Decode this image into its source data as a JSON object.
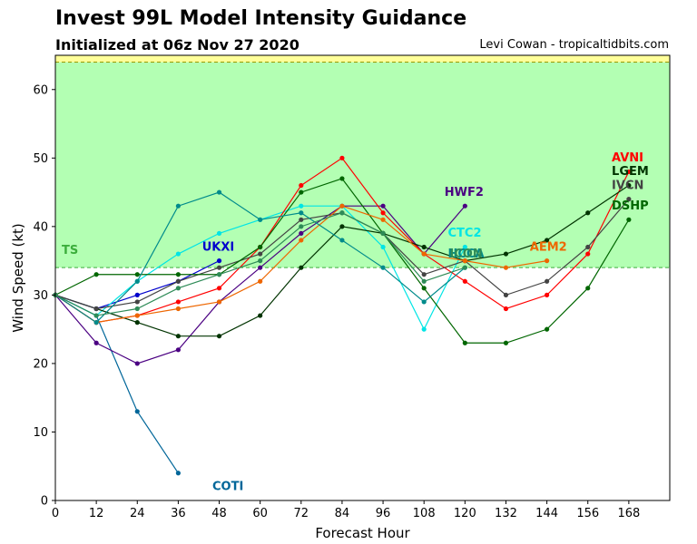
{
  "header": {
    "title": "Invest 99L Model Intensity Guidance",
    "subtitle": "Initialized at 06z Nov 27 2020",
    "credit": "Levi Cowan - tropicaltidbits.com"
  },
  "chart_data": {
    "type": "line",
    "xlabel": "Forecast Hour",
    "ylabel": "Wind Speed (kt)",
    "xlim": [
      0,
      180
    ],
    "ylim": [
      0,
      65
    ],
    "xticks": [
      0,
      12,
      24,
      36,
      48,
      60,
      72,
      84,
      96,
      108,
      120,
      132,
      144,
      156,
      168
    ],
    "yticks": [
      0,
      10,
      20,
      30,
      40,
      50,
      60
    ],
    "bands": [
      {
        "label": "TS",
        "from": 34,
        "to": 64,
        "color": "#b3ffb3",
        "label_color": "#3cae3c"
      },
      {
        "label": "",
        "from": 64,
        "to": 65,
        "color": "#ffff99",
        "label_color": "#999900"
      }
    ],
    "series": [
      {
        "name": "COTI",
        "color": "#006699",
        "label_x": 46,
        "label_y": 1.5,
        "x": [
          0,
          12,
          24,
          36
        ],
        "y": [
          30,
          27,
          13,
          4
        ]
      },
      {
        "name": "UKXI",
        "color": "#0000cc",
        "label_x": 43,
        "label_y": 36.5,
        "x": [
          0,
          12,
          24,
          36,
          48
        ],
        "y": [
          30,
          28,
          30,
          32,
          35
        ]
      },
      {
        "name": "HWF2",
        "color": "#4b0082",
        "label_x": 114,
        "label_y": 44.5,
        "x": [
          0,
          12,
          24,
          36,
          48,
          60,
          72,
          84,
          96,
          108,
          120
        ],
        "y": [
          30,
          23,
          20,
          22,
          29,
          34,
          39,
          43,
          43,
          36,
          43
        ]
      },
      {
        "name": "CTC2",
        "color": "#00e5e5",
        "label_x": 115,
        "label_y": 38.5,
        "x": [
          0,
          12,
          24,
          36,
          48,
          60,
          72,
          84,
          96,
          108,
          120
        ],
        "y": [
          30,
          27,
          32,
          36,
          39,
          41,
          43,
          43,
          37,
          25,
          37
        ]
      },
      {
        "name": "AVNI",
        "color": "#ff0000",
        "label_x": 163,
        "label_y": 49.5,
        "x": [
          0,
          12,
          24,
          36,
          48,
          60,
          72,
          84,
          96,
          108,
          120,
          132,
          144,
          156,
          168
        ],
        "y": [
          30,
          26,
          27,
          29,
          31,
          37,
          46,
          50,
          42,
          36,
          32,
          28,
          30,
          36,
          48
        ]
      },
      {
        "name": "LGEM",
        "color": "#003300",
        "label_x": 163,
        "label_y": 47.5,
        "x": [
          0,
          12,
          24,
          36,
          48,
          60,
          72,
          84,
          96,
          108,
          120,
          132,
          144,
          156,
          168
        ],
        "y": [
          30,
          28,
          26,
          24,
          24,
          27,
          34,
          40,
          39,
          37,
          35,
          36,
          38,
          42,
          46
        ]
      },
      {
        "name": "IVCN",
        "color": "#444444",
        "label_x": 163,
        "label_y": 45.5,
        "x": [
          0,
          12,
          24,
          36,
          48,
          60,
          72,
          84,
          96,
          108,
          120,
          132,
          144,
          156,
          168
        ],
        "y": [
          30,
          28,
          29,
          32,
          34,
          36,
          41,
          42,
          39,
          33,
          35,
          30,
          32,
          37,
          44
        ]
      },
      {
        "name": "DSHP",
        "color": "#006600",
        "label_x": 163,
        "label_y": 42.5,
        "x": [
          0,
          12,
          24,
          36,
          48,
          60,
          72,
          84,
          96,
          108,
          120,
          132,
          144,
          156,
          168
        ],
        "y": [
          30,
          33,
          33,
          33,
          33,
          37,
          45,
          47,
          39,
          31,
          23,
          23,
          25,
          31,
          41
        ]
      },
      {
        "name": "AEM2",
        "color": "#ee6600",
        "label_x": 139,
        "label_y": 36.5,
        "x": [
          0,
          12,
          24,
          36,
          48,
          60,
          72,
          84,
          96,
          108,
          120,
          132,
          144
        ],
        "y": [
          30,
          26,
          27,
          28,
          29,
          32,
          38,
          43,
          41,
          36,
          35,
          34,
          35
        ]
      },
      {
        "name": "HCCA",
        "color": "#008b8b",
        "label_x": 115,
        "label_y": 35.5,
        "x": [
          0,
          12,
          24,
          36,
          48,
          60,
          72,
          84,
          96,
          108,
          120
        ],
        "y": [
          30,
          26,
          32,
          43,
          45,
          41,
          42,
          38,
          34,
          29,
          34
        ]
      },
      {
        "name": "ICON",
        "color": "#2e8b57",
        "label_x": 115.5,
        "label_y": 35.5,
        "x": [
          0,
          12,
          24,
          36,
          48,
          60,
          72,
          84,
          96,
          108,
          120
        ],
        "y": [
          30,
          27,
          28,
          31,
          33,
          35,
          40,
          42,
          39,
          32,
          34
        ]
      }
    ]
  }
}
